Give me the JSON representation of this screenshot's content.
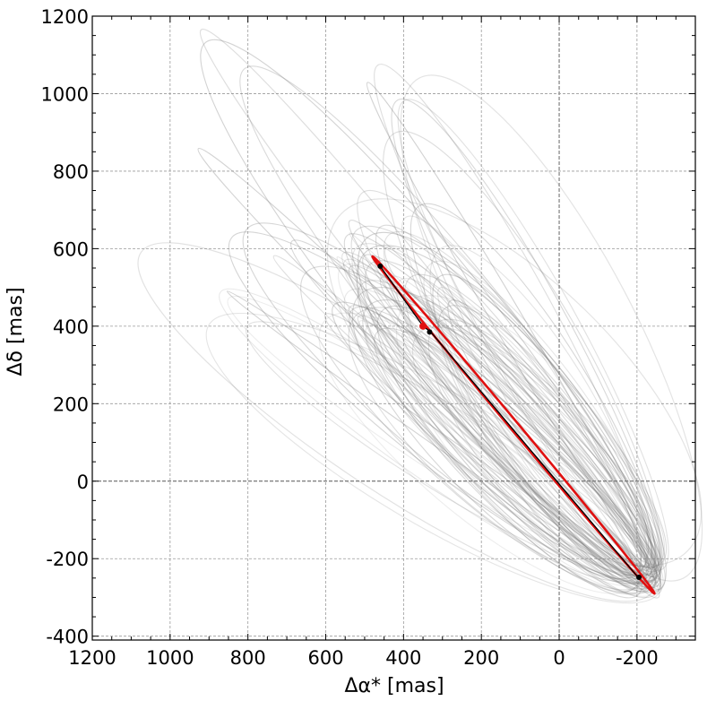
{
  "chart_data": {
    "type": "line",
    "xlabel": "Δα* [mas]",
    "ylabel": "Δδ [mas]",
    "xlim": [
      1200,
      -350
    ],
    "ylim": [
      -410,
      1200
    ],
    "x_inverted": true,
    "grid": true,
    "x_ticks": [
      1200,
      1000,
      800,
      600,
      400,
      200,
      0,
      -200
    ],
    "x_tick_labels": [
      "1200",
      "1000",
      "800",
      "600",
      "400",
      "200",
      "0",
      "-200"
    ],
    "y_ticks": [
      -400,
      -200,
      0,
      200,
      400,
      600,
      800,
      1000,
      1200
    ],
    "y_tick_labels": [
      "-400",
      "-200",
      "0",
      "200",
      "400",
      "600",
      "800",
      "1000",
      "1200"
    ],
    "colors": {
      "best_fit_orbit": "#e01010",
      "sample_orbits": "#7a7a7a",
      "zero_lines": "#555555"
    },
    "best_fit_orbit": {
      "start": [
        480,
        580
      ],
      "end": [
        -245,
        -290
      ],
      "width": 11
    },
    "primary_path": {
      "points": [
        [
          460,
          555
        ],
        [
          350,
          400
        ],
        [
          330,
          385
        ],
        [
          -200,
          -245
        ]
      ]
    },
    "markers": [
      {
        "x": 460,
        "y": 555,
        "color": "#000000"
      },
      {
        "x": 350,
        "y": 400,
        "color": "#e01010"
      },
      {
        "x": 333,
        "y": 385,
        "color": "#000000"
      },
      {
        "x": -205,
        "y": -248,
        "color": "#000000"
      }
    ],
    "sample_orbit_count": 70
  }
}
